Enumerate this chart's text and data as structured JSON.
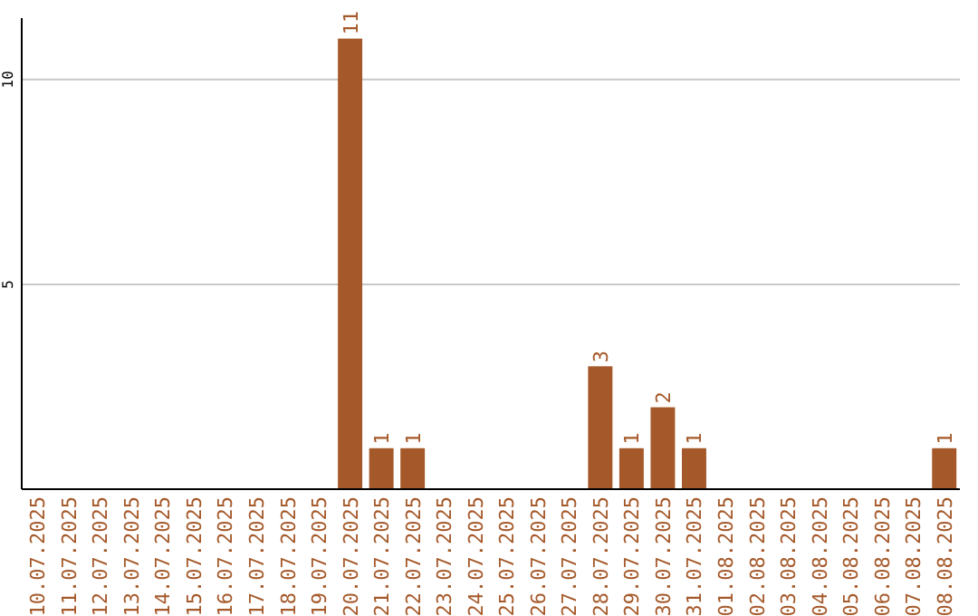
{
  "chart_data": {
    "type": "bar",
    "categories": [
      "10.07.2025",
      "11.07.2025",
      "12.07.2025",
      "13.07.2025",
      "14.07.2025",
      "15.07.2025",
      "16.07.2025",
      "17.07.2025",
      "18.07.2025",
      "19.07.2025",
      "20.07.2025",
      "21.07.2025",
      "22.07.2025",
      "23.07.2025",
      "24.07.2025",
      "25.07.2025",
      "26.07.2025",
      "27.07.2025",
      "28.07.2025",
      "29.07.2025",
      "30.07.2025",
      "31.07.2025",
      "01.08.2025",
      "02.08.2025",
      "03.08.2025",
      "04.08.2025",
      "05.08.2025",
      "06.08.2025",
      "07.08.2025",
      "08.08.2025"
    ],
    "values": [
      0,
      0,
      0,
      0,
      0,
      0,
      0,
      0,
      0,
      0,
      11,
      1,
      1,
      0,
      0,
      0,
      0,
      0,
      3,
      1,
      2,
      1,
      0,
      0,
      0,
      0,
      0,
      0,
      0,
      1
    ],
    "value_labels": [
      null,
      null,
      null,
      null,
      null,
      null,
      null,
      null,
      null,
      null,
      "11",
      "1",
      "1",
      null,
      null,
      null,
      null,
      null,
      "3",
      "1",
      "2",
      "1",
      null,
      null,
      null,
      null,
      null,
      null,
      null,
      "1"
    ],
    "color": "#a5592a",
    "ylim": [
      0,
      11.5
    ],
    "yticks": [
      5,
      10
    ],
    "grid": "y"
  }
}
